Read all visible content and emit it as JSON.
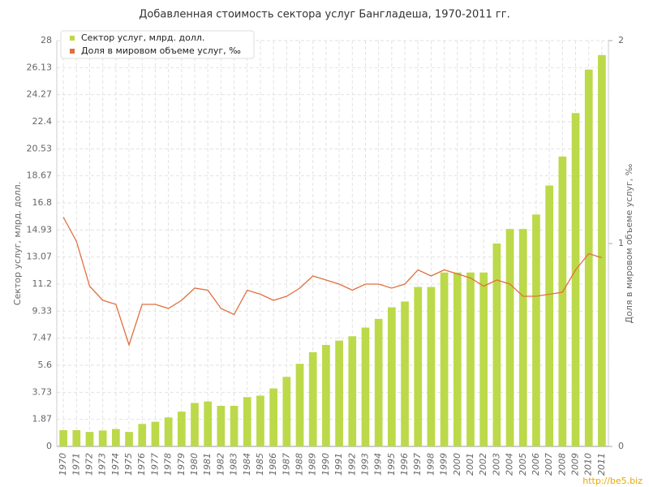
{
  "chart_data": {
    "type": "bar_line",
    "title": "Добавленная стоимость сектора услуг Бангладеша, 1970-2011 гг.",
    "y_label": "Сектор услуг, млрд. долл.",
    "y2_label": "Доля в мировом объеме услуг, ‰",
    "watermark": "http://be5.biz",
    "categories": [
      "1970",
      "1971",
      "1972",
      "1973",
      "1974",
      "1975",
      "1976",
      "1977",
      "1978",
      "1979",
      "1980",
      "1981",
      "1982",
      "1983",
      "1984",
      "1985",
      "1986",
      "1987",
      "1988",
      "1989",
      "1990",
      "1991",
      "1992",
      "1993",
      "1994",
      "1995",
      "1996",
      "1997",
      "1998",
      "1999",
      "2000",
      "2001",
      "2002",
      "2003",
      "2004",
      "2005",
      "2006",
      "2007",
      "2008",
      "2009",
      "2010",
      "2011"
    ],
    "series": [
      {
        "name": "Сектор услуг, млрд. долл.",
        "color": "#bcd94a",
        "kind": "bar",
        "values": [
          1.12,
          1.12,
          1.0,
          1.1,
          1.2,
          1.0,
          1.55,
          1.7,
          2.0,
          2.4,
          3.0,
          3.1,
          2.8,
          2.8,
          3.4,
          3.5,
          4.0,
          4.8,
          5.7,
          6.5,
          7.0,
          7.3,
          7.6,
          8.2,
          8.8,
          9.6,
          10.0,
          11.0,
          11.0,
          12.0,
          12.0,
          12.0,
          12.0,
          14.0,
          15.0,
          15.0,
          16.0,
          18.0,
          20.0,
          23.0,
          26.0,
          27.0
        ]
      },
      {
        "name": "Доля в мировом объеме услуг, ‰",
        "color": "#e0703e",
        "kind": "line",
        "axis": "y2",
        "values": [
          1.13,
          1.01,
          0.79,
          0.72,
          0.7,
          0.5,
          0.7,
          0.7,
          0.68,
          0.72,
          0.78,
          0.77,
          0.68,
          0.65,
          0.77,
          0.75,
          0.72,
          0.74,
          0.78,
          0.84,
          0.82,
          0.8,
          0.77,
          0.8,
          0.8,
          0.78,
          0.8,
          0.87,
          0.84,
          0.87,
          0.85,
          0.83,
          0.79,
          0.82,
          0.8,
          0.74,
          0.74,
          0.75,
          0.76,
          0.87,
          0.95,
          0.93
        ]
      }
    ],
    "ylim": [
      0,
      28
    ],
    "yticks": [
      0,
      1.87,
      3.73,
      5.6,
      7.47,
      9.33,
      11.2,
      13.07,
      14.93,
      16.8,
      18.67,
      20.53,
      22.4,
      24.27,
      26.13,
      28
    ],
    "y2lim": [
      0,
      2
    ],
    "y2ticks": [
      0,
      1,
      2
    ],
    "grid": true,
    "legend": "top-left"
  }
}
